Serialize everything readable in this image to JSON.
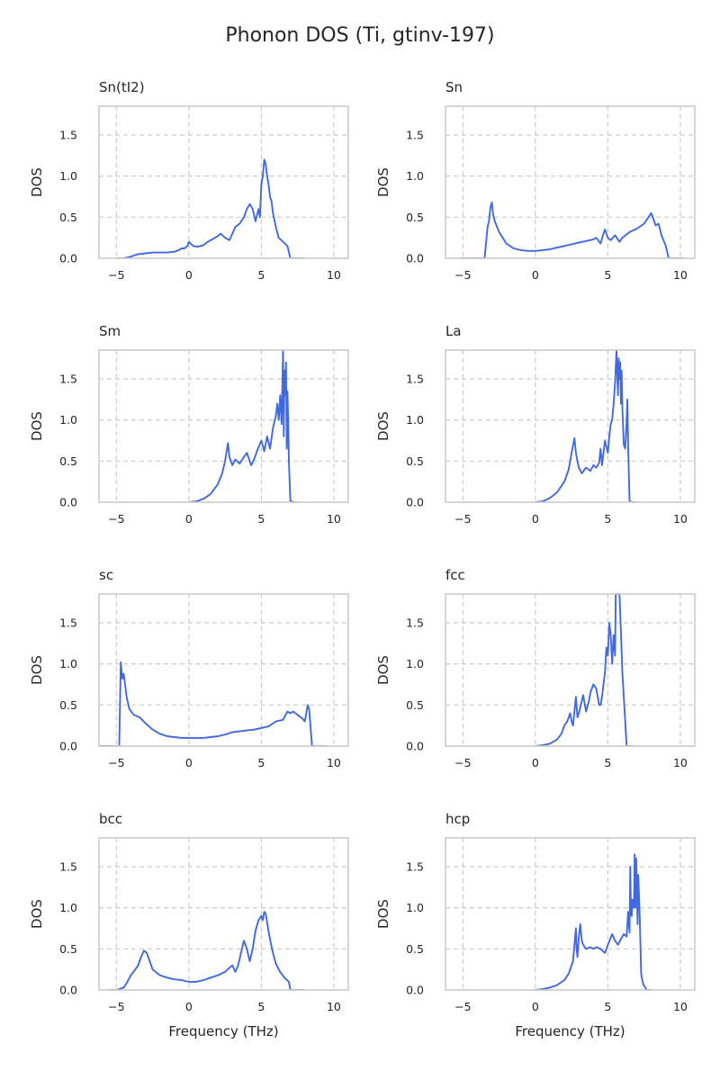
{
  "figure": {
    "title": "Phonon DOS (Ti, gtinv-197)"
  },
  "colors": {
    "series": "#4169e1",
    "grid": "#cccccc",
    "text": "#262626"
  },
  "chart_data": [
    {
      "type": "line",
      "title": "Sn(tI2)",
      "xlabel": "",
      "ylabel": "DOS",
      "xlim": [
        -6.2,
        11
      ],
      "ylim": [
        0,
        1.85
      ],
      "xticks": [
        "-5",
        "0",
        "5",
        "10"
      ],
      "yticks": [
        "0.0",
        "0.5",
        "1.0",
        "1.5"
      ],
      "grid": true,
      "x": [
        -5,
        -4.5,
        -4,
        -3.7,
        -3.5,
        -3,
        -2.5,
        -2,
        -1.5,
        -1,
        -0.7,
        -0.5,
        -0.3,
        -0.1,
        0,
        0.3,
        0.6,
        1,
        1.3,
        1.5,
        1.8,
        2,
        2.2,
        2.5,
        2.8,
        3,
        3.2,
        3.5,
        3.8,
        4,
        4.2,
        4.4,
        4.6,
        4.8,
        4.9,
        5,
        5.1,
        5.2,
        5.3,
        5.4,
        5.5,
        5.6,
        5.7,
        5.8,
        6,
        6.2,
        6.5,
        6.8,
        7,
        7.5,
        8
      ],
      "y": [
        0,
        0,
        0.02,
        0.04,
        0.05,
        0.06,
        0.07,
        0.07,
        0.07,
        0.08,
        0.1,
        0.12,
        0.12,
        0.15,
        0.2,
        0.15,
        0.14,
        0.16,
        0.2,
        0.22,
        0.25,
        0.27,
        0.3,
        0.25,
        0.22,
        0.3,
        0.38,
        0.42,
        0.5,
        0.6,
        0.66,
        0.6,
        0.45,
        0.6,
        0.5,
        0.9,
        1.0,
        1.2,
        1.15,
        1.0,
        0.9,
        0.75,
        0.7,
        0.55,
        0.38,
        0.25,
        0.2,
        0.15,
        0,
        0,
        0
      ]
    },
    {
      "type": "line",
      "title": "Sn",
      "xlabel": "",
      "ylabel": "DOS",
      "xlim": [
        -6.2,
        11
      ],
      "ylim": [
        0,
        1.85
      ],
      "xticks": [
        "-5",
        "0",
        "5",
        "10"
      ],
      "yticks": [
        "0.0",
        "0.5",
        "1.0",
        "1.5"
      ],
      "grid": true,
      "x": [
        -5.2,
        -4.5,
        -3.5,
        -3.3,
        -3.2,
        -3.1,
        -3,
        -2.9,
        -2.8,
        -2.5,
        -2,
        -1.5,
        -1,
        -0.5,
        0,
        0.5,
        1,
        1.5,
        2,
        2.5,
        3,
        3.5,
        4,
        4.2,
        4.5,
        4.7,
        4.8,
        5,
        5.2,
        5.5,
        5.8,
        6,
        6.5,
        7,
        7.5,
        7.8,
        8,
        8.3,
        8.5,
        8.7,
        9,
        9.2,
        9.5,
        10.2
      ],
      "y": [
        0,
        0,
        0,
        0.38,
        0.45,
        0.62,
        0.68,
        0.52,
        0.45,
        0.32,
        0.18,
        0.12,
        0.1,
        0.09,
        0.09,
        0.1,
        0.11,
        0.13,
        0.15,
        0.17,
        0.19,
        0.21,
        0.23,
        0.25,
        0.18,
        0.3,
        0.35,
        0.25,
        0.22,
        0.28,
        0.2,
        0.25,
        0.32,
        0.36,
        0.42,
        0.5,
        0.55,
        0.4,
        0.42,
        0.28,
        0.15,
        0,
        0,
        0
      ]
    },
    {
      "type": "line",
      "title": "Sm",
      "xlabel": "",
      "ylabel": "DOS",
      "xlim": [
        -6.2,
        11
      ],
      "ylim": [
        0,
        1.85
      ],
      "xticks": [
        "-5",
        "0",
        "5",
        "10"
      ],
      "yticks": [
        "0.0",
        "0.5",
        "1.0",
        "1.5"
      ],
      "grid": true,
      "x": [
        0,
        0.5,
        1,
        1.5,
        2,
        2.3,
        2.5,
        2.7,
        2.8,
        2.9,
        3,
        3.2,
        3.5,
        3.8,
        4,
        4.3,
        4.5,
        4.7,
        5,
        5.2,
        5.4,
        5.6,
        5.8,
        6,
        6.1,
        6.2,
        6.3,
        6.4,
        6.5,
        6.55,
        6.6,
        6.65,
        6.7,
        6.75,
        6.8,
        6.85,
        6.9,
        7,
        7.2,
        7.5
      ],
      "y": [
        0,
        0.01,
        0.04,
        0.1,
        0.22,
        0.35,
        0.5,
        0.72,
        0.55,
        0.5,
        0.45,
        0.52,
        0.47,
        0.55,
        0.6,
        0.45,
        0.52,
        0.62,
        0.75,
        0.62,
        0.8,
        0.65,
        0.9,
        1.05,
        1.2,
        1.0,
        1.3,
        0.95,
        1.85,
        0.8,
        1.6,
        1.3,
        1.7,
        0.65,
        1.35,
        1.0,
        0.5,
        0.02,
        0,
        0
      ]
    },
    {
      "type": "line",
      "title": "La",
      "xlabel": "",
      "ylabel": "DOS",
      "xlim": [
        -6.2,
        11
      ],
      "ylim": [
        0,
        1.85
      ],
      "xticks": [
        "-5",
        "0",
        "5",
        "10"
      ],
      "yticks": [
        "0.0",
        "0.5",
        "1.0",
        "1.5"
      ],
      "grid": true,
      "x": [
        0,
        0.5,
        1,
        1.5,
        2,
        2.3,
        2.5,
        2.7,
        2.8,
        2.9,
        3,
        3.2,
        3.5,
        3.8,
        4,
        4.2,
        4.4,
        4.5,
        4.6,
        4.8,
        5,
        5.1,
        5.2,
        5.3,
        5.4,
        5.5,
        5.6,
        5.7,
        5.75,
        5.8,
        5.85,
        5.9,
        5.95,
        6,
        6.1,
        6.2,
        6.3,
        6.35,
        6.4,
        6.5,
        6.6,
        7
      ],
      "y": [
        0,
        0.01,
        0.05,
        0.12,
        0.25,
        0.4,
        0.6,
        0.78,
        0.6,
        0.5,
        0.42,
        0.35,
        0.42,
        0.38,
        0.45,
        0.42,
        0.48,
        0.65,
        0.45,
        0.75,
        0.6,
        0.8,
        0.95,
        1.0,
        1.2,
        1.45,
        1.85,
        1.3,
        1.75,
        1.5,
        1.7,
        1.2,
        1.6,
        1.15,
        0.7,
        0.65,
        1.0,
        1.25,
        0.7,
        0.02,
        0,
        0
      ]
    },
    {
      "type": "line",
      "title": "sc",
      "xlabel": "",
      "ylabel": "DOS",
      "xlim": [
        -6.2,
        11
      ],
      "ylim": [
        0,
        1.85
      ],
      "xticks": [
        "-5",
        "0",
        "5",
        "10"
      ],
      "yticks": [
        "0.0",
        "0.5",
        "1.0",
        "1.5"
      ],
      "grid": true,
      "x": [
        -6.2,
        -4.8,
        -4.7,
        -4.6,
        -4.5,
        -4.4,
        -4.3,
        -4.1,
        -3.8,
        -3.4,
        -3,
        -2.5,
        -2,
        -1.5,
        -1,
        -0.5,
        0,
        0.5,
        1,
        1.5,
        2,
        2.5,
        3,
        3.5,
        4,
        4.5,
        5,
        5.5,
        6,
        6.5,
        6.8,
        7,
        7.2,
        7.5,
        7.8,
        8,
        8.2,
        8.3,
        8.5,
        9,
        9.5
      ],
      "y": [
        0,
        0,
        1.02,
        0.82,
        0.88,
        0.75,
        0.6,
        0.45,
        0.38,
        0.35,
        0.28,
        0.2,
        0.15,
        0.12,
        0.11,
        0.1,
        0.1,
        0.1,
        0.1,
        0.11,
        0.12,
        0.14,
        0.17,
        0.18,
        0.19,
        0.2,
        0.22,
        0.24,
        0.3,
        0.32,
        0.42,
        0.4,
        0.42,
        0.38,
        0.34,
        0.3,
        0.5,
        0.45,
        0,
        0,
        0
      ]
    },
    {
      "type": "line",
      "title": "fcc",
      "xlabel": "",
      "ylabel": "DOS",
      "xlim": [
        -6.2,
        11
      ],
      "ylim": [
        0,
        1.85
      ],
      "xticks": [
        "-5",
        "0",
        "5",
        "10"
      ],
      "yticks": [
        "0.0",
        "0.5",
        "1.0",
        "1.5"
      ],
      "grid": true,
      "x": [
        0,
        0.5,
        1,
        1.5,
        1.8,
        2,
        2.2,
        2.4,
        2.5,
        2.6,
        2.8,
        2.9,
        3,
        3.2,
        3.3,
        3.5,
        3.7,
        3.8,
        4,
        4.2,
        4.4,
        4.5,
        4.6,
        4.8,
        4.9,
        5,
        5.1,
        5.2,
        5.3,
        5.4,
        5.5,
        5.55,
        5.6,
        5.7,
        5.8,
        5.9,
        6,
        6.1,
        6.3,
        6.8
      ],
      "y": [
        0,
        0.01,
        0.03,
        0.08,
        0.15,
        0.25,
        0.3,
        0.4,
        0.3,
        0.25,
        0.6,
        0.35,
        0.4,
        0.55,
        0.62,
        0.42,
        0.55,
        0.65,
        0.75,
        0.7,
        0.5,
        0.5,
        0.6,
        0.9,
        1.2,
        1.1,
        1.5,
        1.35,
        1.0,
        1.35,
        1.1,
        1.85,
        1.85,
        1.85,
        1.85,
        1.4,
        0.9,
        0.6,
        0,
        0
      ]
    },
    {
      "type": "line",
      "title": "bcc",
      "xlabel": "Frequency (THz)",
      "ylabel": "DOS",
      "xlim": [
        -6.2,
        11
      ],
      "ylim": [
        0,
        1.85
      ],
      "xticks": [
        "-5",
        "0",
        "5",
        "10"
      ],
      "yticks": [
        "0.0",
        "0.5",
        "1.0",
        "1.5"
      ],
      "grid": true,
      "x": [
        -5.5,
        -5,
        -4.5,
        -4.3,
        -4,
        -3.7,
        -3.5,
        -3.3,
        -3.1,
        -2.9,
        -2.7,
        -2.5,
        -2,
        -1.5,
        -1,
        -0.5,
        0,
        0.5,
        1,
        1.5,
        2,
        2.5,
        2.8,
        3,
        3.2,
        3.4,
        3.6,
        3.8,
        4,
        4.2,
        4.4,
        4.6,
        4.8,
        5,
        5.1,
        5.2,
        5.3,
        5.4,
        5.6,
        5.8,
        6,
        6.3,
        6.6,
        6.9,
        7,
        8
      ],
      "y": [
        0,
        0,
        0.03,
        0.08,
        0.18,
        0.25,
        0.3,
        0.4,
        0.48,
        0.45,
        0.35,
        0.25,
        0.18,
        0.15,
        0.13,
        0.12,
        0.1,
        0.1,
        0.12,
        0.15,
        0.18,
        0.22,
        0.27,
        0.3,
        0.22,
        0.3,
        0.45,
        0.6,
        0.5,
        0.35,
        0.5,
        0.72,
        0.85,
        0.9,
        0.85,
        0.95,
        0.93,
        0.82,
        0.62,
        0.45,
        0.32,
        0.22,
        0.15,
        0.1,
        0,
        0
      ]
    },
    {
      "type": "line",
      "title": "hcp",
      "xlabel": "Frequency (THz)",
      "ylabel": "DOS",
      "xlim": [
        -6.2,
        11
      ],
      "ylim": [
        0,
        1.85
      ],
      "xticks": [
        "-5",
        "0",
        "5",
        "10"
      ],
      "yticks": [
        "0.0",
        "0.5",
        "1.0",
        "1.5"
      ],
      "grid": true,
      "x": [
        0,
        0.5,
        1,
        1.5,
        2,
        2.3,
        2.6,
        2.8,
        2.85,
        2.9,
        3,
        3.1,
        3.2,
        3.3,
        3.5,
        3.8,
        4,
        4.2,
        4.5,
        4.8,
        5,
        5.3,
        5.5,
        5.7,
        5.9,
        6.1,
        6.3,
        6.4,
        6.5,
        6.55,
        6.6,
        6.65,
        6.7,
        6.8,
        6.85,
        6.9,
        6.95,
        7,
        7.05,
        7.1,
        7.2,
        7.3,
        7.4,
        7.5,
        7.7,
        8
      ],
      "y": [
        0,
        0.01,
        0.03,
        0.06,
        0.12,
        0.2,
        0.35,
        0.75,
        0.5,
        0.4,
        0.65,
        0.8,
        0.6,
        0.55,
        0.5,
        0.52,
        0.5,
        0.52,
        0.5,
        0.45,
        0.55,
        0.68,
        0.6,
        0.55,
        0.62,
        0.68,
        0.65,
        0.95,
        0.7,
        1.5,
        0.95,
        0.9,
        1.1,
        1.0,
        1.65,
        1.0,
        1.6,
        1.3,
        0.8,
        1.4,
        0.9,
        0.2,
        0.1,
        0.05,
        0,
        0
      ]
    }
  ]
}
